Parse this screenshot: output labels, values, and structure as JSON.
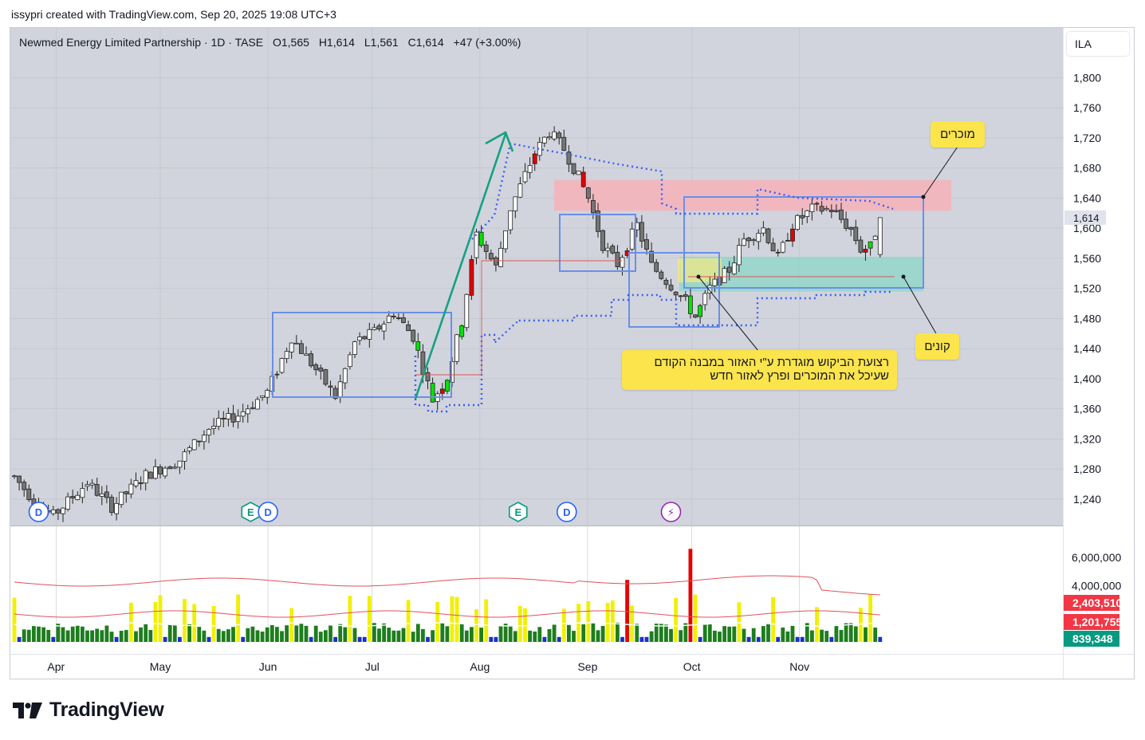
{
  "header": {
    "attribution": "issypri created with TradingView.com, Sep 20, 2025 19:08 UTC+3"
  },
  "legend": {
    "symbol": "Newmed Energy Limited Partnership",
    "interval": "1D",
    "exchange": "TASE",
    "open": "O1,565",
    "high": "H1,614",
    "low": "L1,561",
    "close": "C1,614",
    "change": "+47 (+3.00%)"
  },
  "currency": "ILA",
  "last_price_label": "1,614",
  "volume_labels": {
    "ma_long": "2,403,510",
    "ma_short": "1,201,755",
    "volume": "839,348",
    "colors": {
      "ma_long": "#f23645",
      "ma_short": "#f23645",
      "volume": "#089981"
    }
  },
  "annotations": {
    "sellers": "מוכרים",
    "buyers": "קונים",
    "demand_line1": "רצועת הביקוש מוגדרת ע\"י האזור במבנה הקודם",
    "demand_line2": "שעיכל את המוכרים ופרץ לאזור חדש"
  },
  "event_markers": [
    {
      "icon": "dividend-icon",
      "label": "D",
      "date": "2025-03-27"
    },
    {
      "icon": "earnings-icon",
      "label": "E",
      "date": "2025-05-27"
    },
    {
      "icon": "dividend-icon",
      "label": "D",
      "date": "2025-06-01"
    },
    {
      "icon": "earnings-icon",
      "label": "E",
      "date": "2025-08-12"
    },
    {
      "icon": "dividend-icon",
      "label": "D",
      "date": "2025-08-26"
    },
    {
      "icon": "split-icon",
      "label": "⚡",
      "date": "2025-09-25"
    }
  ],
  "brand": {
    "name": "TradingView"
  },
  "chart_data": {
    "type": "candlestick",
    "x_axis": {
      "ticks": [
        "Apr",
        "May",
        "Jun",
        "Jul",
        "Aug",
        "Sep",
        "Oct",
        "Nov"
      ]
    },
    "y_axis": {
      "ticks": [
        "1,240",
        "1,280",
        "1,320",
        "1,360",
        "1,400",
        "1,440",
        "1,480",
        "1,520",
        "1,560",
        "1,600",
        "1,640",
        "1,680",
        "1,720",
        "1,760",
        "1,800"
      ],
      "range": [
        1205,
        1866
      ]
    },
    "volume_axis": {
      "ticks": [
        "4,000,000",
        "6,000,000"
      ]
    },
    "grid": true,
    "anchors": [
      [
        0,
        1270
      ],
      [
        5,
        1230
      ],
      [
        8,
        1218
      ],
      [
        15,
        1262
      ],
      [
        20,
        1230
      ],
      [
        27,
        1272
      ],
      [
        34,
        1292
      ],
      [
        40,
        1334
      ],
      [
        46,
        1352
      ],
      [
        52,
        1382
      ],
      [
        57,
        1455
      ],
      [
        62,
        1412
      ],
      [
        66,
        1376
      ],
      [
        70,
        1448
      ],
      [
        74,
        1462
      ],
      [
        78,
        1488
      ],
      [
        82,
        1456
      ],
      [
        86,
        1372
      ],
      [
        89,
        1402
      ],
      [
        92,
        1476
      ],
      [
        95,
        1592
      ],
      [
        99,
        1548
      ],
      [
        102,
        1626
      ],
      [
        107,
        1700
      ],
      [
        110,
        1728
      ],
      [
        113,
        1705
      ],
      [
        116,
        1668
      ],
      [
        118,
        1640
      ],
      [
        121,
        1578
      ],
      [
        124,
        1552
      ],
      [
        128,
        1604
      ],
      [
        131,
        1550
      ],
      [
        135,
        1524
      ],
      [
        138,
        1502
      ],
      [
        140,
        1482
      ],
      [
        143,
        1520
      ],
      [
        147,
        1545
      ],
      [
        150,
        1585
      ],
      [
        154,
        1600
      ],
      [
        157,
        1560
      ],
      [
        160,
        1605
      ],
      [
        164,
        1625
      ],
      [
        168,
        1625
      ],
      [
        172,
        1598
      ],
      [
        174,
        1572
      ],
      [
        176,
        1575
      ],
      [
        178,
        1614
      ]
    ],
    "candle_count": 179,
    "start_date": "2025-03-20",
    "last_candle": {
      "open": 1565,
      "high": 1614,
      "low": 1561,
      "close": 1614
    },
    "colors": {
      "bull": "#ffffff",
      "bear": "#757575",
      "highlight_bull": "#00e600",
      "highlight_bear": "#e60000",
      "volume_up": "#1e7d1e",
      "volume_high": "#f0f000",
      "volume_spike": "#e60000",
      "volume_low": "#1a2fd0",
      "supply_zone": "#f7b2ba",
      "demand_zone": "#8fd6c9",
      "box": "#6b8fe8",
      "dotted": "#3d5df5",
      "arrow": "#16a085"
    }
  }
}
